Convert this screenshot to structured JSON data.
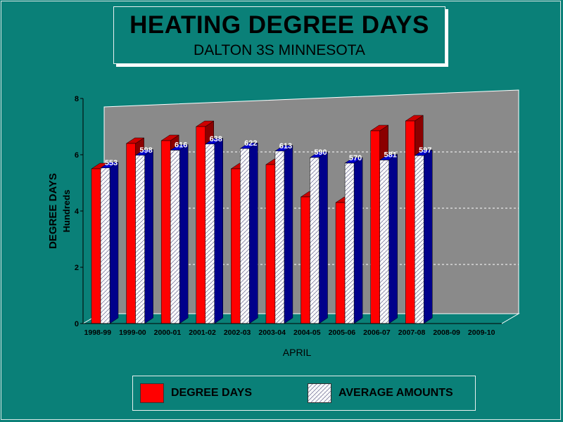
{
  "title": "HEATING DEGREE DAYS",
  "subtitle": "DALTON 3S MINNESOTA",
  "legend": {
    "degree_days": "DEGREE DAYS",
    "average_amounts": "AVERAGE AMOUNTS"
  },
  "colors": {
    "background": "#0a8078",
    "plot_back": "#8a8a8a",
    "degree_days": "#ff0000",
    "average_side": "#00008b"
  },
  "chart_data": {
    "type": "bar",
    "title": "HEATING DEGREE DAYS",
    "subtitle": "DALTON 3S MINNESOTA",
    "xlabel": "APRIL",
    "ylabel": "DEGREE DAYS",
    "ylabel2": "Hundreds",
    "ylim": [
      0,
      8
    ],
    "yticks": [
      "0",
      "2",
      "4",
      "6",
      "8"
    ],
    "grid": true,
    "legend_position": "bottom",
    "categories": [
      "1998-99",
      "1999-00",
      "2000-01",
      "2001-02",
      "2002-03",
      "2003-04",
      "2004-05",
      "2005-06",
      "2006-07",
      "2007-08",
      "2008-09",
      "2009-10"
    ],
    "series": [
      {
        "name": "DEGREE DAYS",
        "values": [
          5.5,
          6.4,
          6.5,
          7.0,
          5.5,
          5.65,
          4.5,
          4.3,
          6.85,
          7.2,
          null,
          null
        ]
      },
      {
        "name": "AVERAGE AMOUNTS",
        "values": [
          5.53,
          5.98,
          6.16,
          6.38,
          6.22,
          6.13,
          5.9,
          5.7,
          5.81,
          5.97,
          null,
          null
        ]
      }
    ],
    "data_labels": [
      "553",
      "598",
      "616",
      "638",
      "622",
      "613",
      "590",
      "570",
      "581",
      "597",
      "",
      ""
    ]
  }
}
